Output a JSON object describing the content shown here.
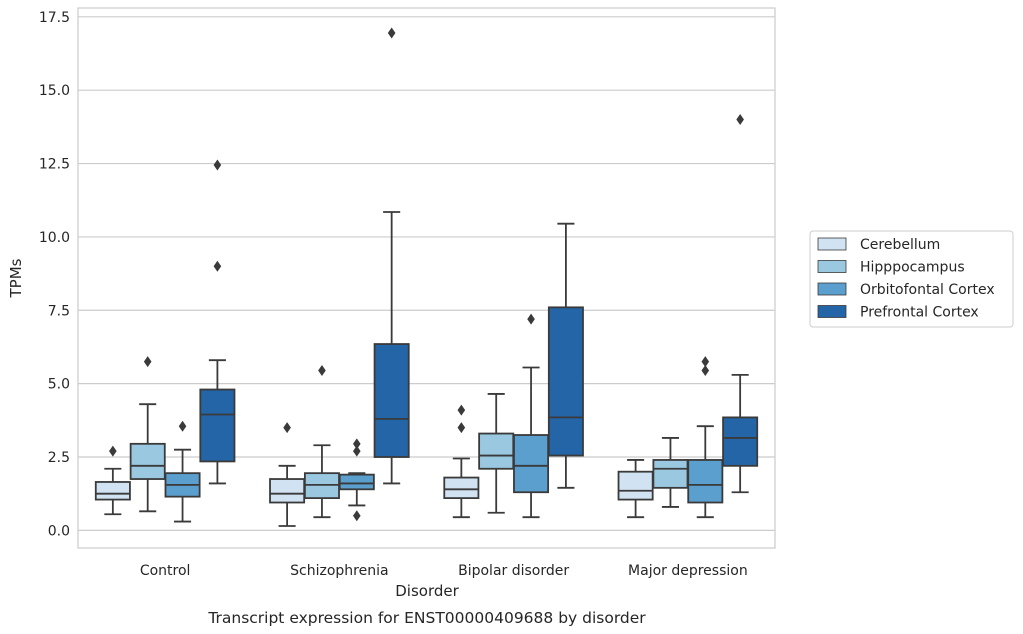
{
  "chart_data": {
    "type": "box",
    "caption": "Transcript expression for ENST00000409688 by disorder",
    "xlabel": "Disorder",
    "ylabel": "TPMs",
    "ylim": [
      -0.6,
      17.8
    ],
    "yticks": [
      0.0,
      2.5,
      5.0,
      7.5,
      10.0,
      12.5,
      15.0,
      17.5
    ],
    "ytick_labels": [
      "0.0",
      "2.5",
      "5.0",
      "7.5",
      "10.0",
      "12.5",
      "15.0",
      "17.5"
    ],
    "grid": "horizontal",
    "legend_position": "right",
    "categories": [
      "Control",
      "Schizophrenia",
      "Bipolar disorder",
      "Major depression"
    ],
    "series": [
      {
        "name": "Cerebellum",
        "color": "#d1e2f2",
        "boxes": [
          {
            "q1": 1.05,
            "median": 1.25,
            "q3": 1.65,
            "whisker_low": 0.55,
            "whisker_high": 2.1,
            "outliers": [
              2.7
            ]
          },
          {
            "q1": 0.95,
            "median": 1.25,
            "q3": 1.75,
            "whisker_low": 0.15,
            "whisker_high": 2.2,
            "outliers": [
              3.5
            ]
          },
          {
            "q1": 1.1,
            "median": 1.4,
            "q3": 1.8,
            "whisker_low": 0.45,
            "whisker_high": 2.45,
            "outliers": [
              3.5,
              4.1
            ]
          },
          {
            "q1": 1.05,
            "median": 1.35,
            "q3": 2.0,
            "whisker_low": 0.45,
            "whisker_high": 2.4,
            "outliers": []
          }
        ]
      },
      {
        "name": "Hipppocampus",
        "color": "#9ac8e0",
        "boxes": [
          {
            "q1": 1.75,
            "median": 2.2,
            "q3": 2.95,
            "whisker_low": 0.65,
            "whisker_high": 4.3,
            "outliers": [
              5.75
            ]
          },
          {
            "q1": 1.1,
            "median": 1.55,
            "q3": 1.95,
            "whisker_low": 0.45,
            "whisker_high": 2.9,
            "outliers": [
              5.45
            ]
          },
          {
            "q1": 2.1,
            "median": 2.55,
            "q3": 3.3,
            "whisker_low": 0.6,
            "whisker_high": 4.65,
            "outliers": []
          },
          {
            "q1": 1.45,
            "median": 2.1,
            "q3": 2.4,
            "whisker_low": 0.8,
            "whisker_high": 3.15,
            "outliers": []
          }
        ]
      },
      {
        "name": "Orbitofontal Cortex",
        "color": "#5a9fcd",
        "boxes": [
          {
            "q1": 1.15,
            "median": 1.55,
            "q3": 1.95,
            "whisker_low": 0.3,
            "whisker_high": 2.75,
            "outliers": [
              3.55
            ]
          },
          {
            "q1": 1.4,
            "median": 1.6,
            "q3": 1.9,
            "whisker_low": 0.85,
            "whisker_high": 1.95,
            "outliers": [
              0.5,
              2.7,
              2.95
            ]
          },
          {
            "q1": 1.3,
            "median": 2.2,
            "q3": 3.25,
            "whisker_low": 0.45,
            "whisker_high": 5.55,
            "outliers": [
              7.2
            ]
          },
          {
            "q1": 0.95,
            "median": 1.55,
            "q3": 2.4,
            "whisker_low": 0.45,
            "whisker_high": 3.55,
            "outliers": [
              5.75,
              5.45
            ]
          }
        ]
      },
      {
        "name": "Prefrontal Cortex",
        "color": "#2465a7",
        "boxes": [
          {
            "q1": 2.35,
            "median": 3.95,
            "q3": 4.8,
            "whisker_low": 1.6,
            "whisker_high": 5.8,
            "outliers": [
              9.0,
              12.45
            ]
          },
          {
            "q1": 2.5,
            "median": 3.8,
            "q3": 6.35,
            "whisker_low": 1.6,
            "whisker_high": 10.85,
            "outliers": [
              16.95
            ]
          },
          {
            "q1": 2.55,
            "median": 3.85,
            "q3": 7.6,
            "whisker_low": 1.45,
            "whisker_high": 10.45,
            "outliers": []
          },
          {
            "q1": 2.2,
            "median": 3.15,
            "q3": 3.85,
            "whisker_low": 1.3,
            "whisker_high": 5.3,
            "outliers": [
              14.0
            ]
          }
        ]
      }
    ]
  }
}
